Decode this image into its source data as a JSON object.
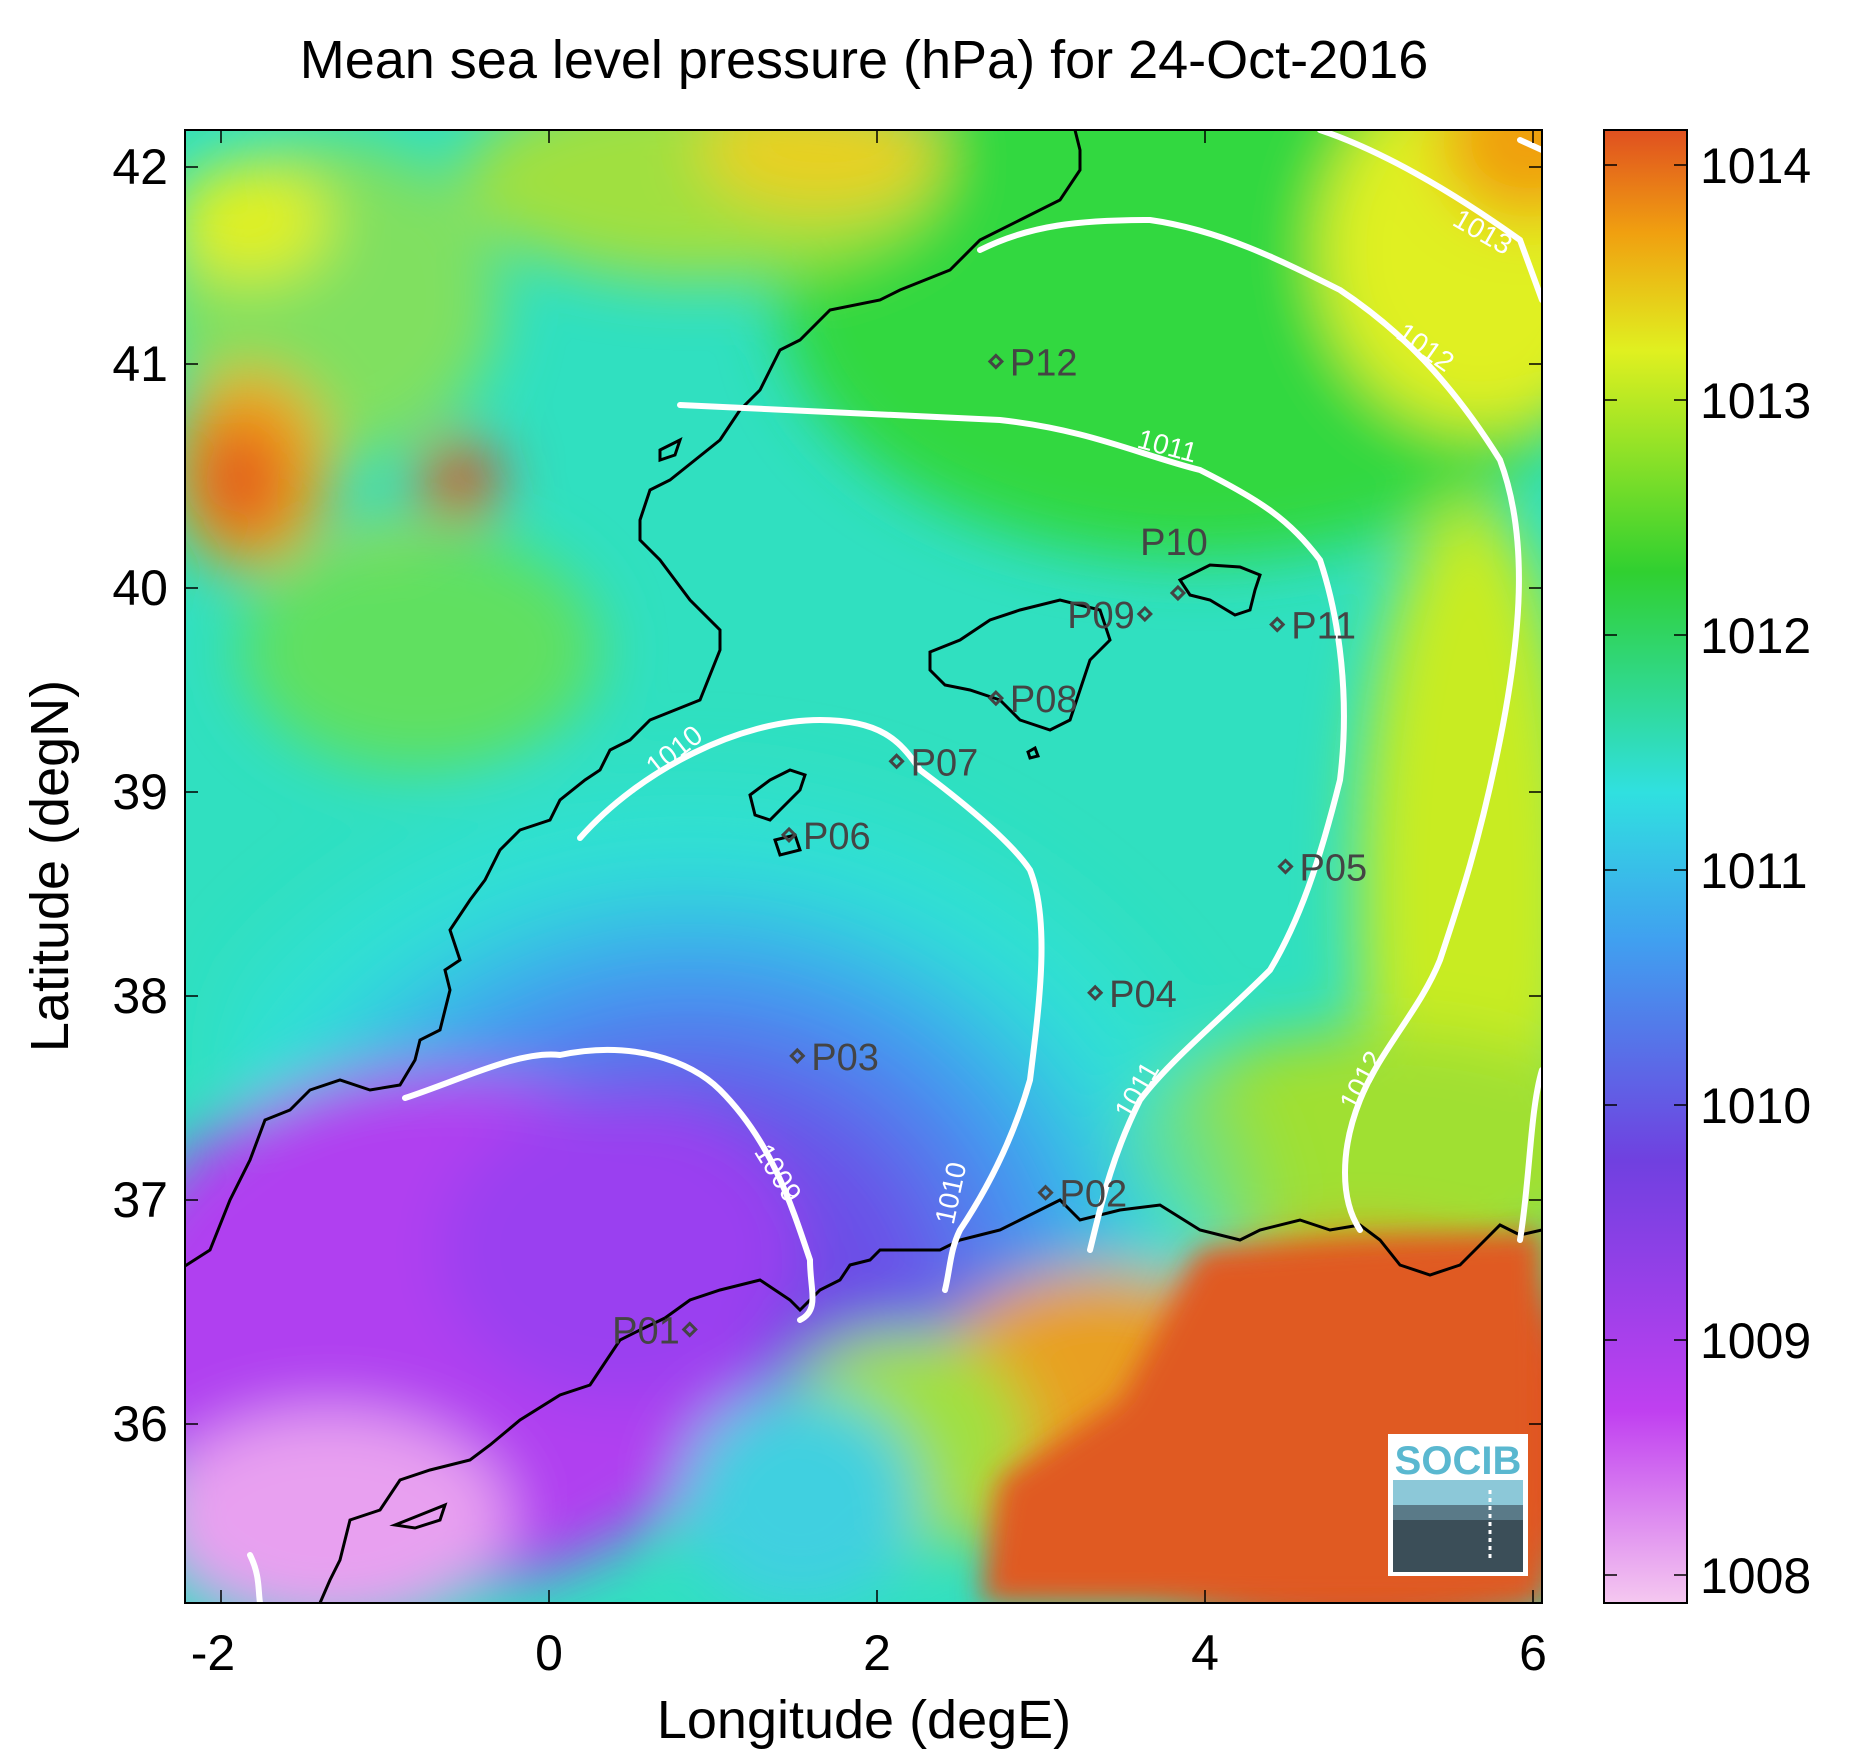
{
  "title": "Mean sea level pressure (hPa) for 24-Oct-2016",
  "xlabel": "Longitude (degE)",
  "ylabel": "Latitude (degN)",
  "xticks": [
    "-2",
    "0",
    "2",
    "4",
    "6"
  ],
  "yticks": [
    "42",
    "41",
    "40",
    "39",
    "38",
    "37",
    "36"
  ],
  "colorbar": {
    "ticks": [
      "1014",
      "1013",
      "1012",
      "1011",
      "1010",
      "1009",
      "1008"
    ],
    "stops": [
      "#f5c8f0",
      "#c040f0",
      "#7040e0",
      "#40a0f0",
      "#30e0e0",
      "#30d030",
      "#e0f020",
      "#f0a010",
      "#e05020"
    ]
  },
  "contour_labels": [
    "1009",
    "1010",
    "1010",
    "1011",
    "1011",
    "1012",
    "1012",
    "1013"
  ],
  "stations": [
    {
      "id": "P01",
      "lon": 0.85,
      "lat": 36.5
    },
    {
      "id": "P02",
      "lon": 3.0,
      "lat": 37.15
    },
    {
      "id": "P03",
      "lon": 1.5,
      "lat": 37.8
    },
    {
      "id": "P04",
      "lon": 3.3,
      "lat": 38.1
    },
    {
      "id": "P05",
      "lon": 4.45,
      "lat": 38.7
    },
    {
      "id": "P06",
      "lon": 1.45,
      "lat": 38.85
    },
    {
      "id": "P07",
      "lon": 2.1,
      "lat": 39.2
    },
    {
      "id": "P08",
      "lon": 2.7,
      "lat": 39.5
    },
    {
      "id": "P09",
      "lon": 3.6,
      "lat": 39.9
    },
    {
      "id": "P10",
      "lon": 3.8,
      "lat": 40.0
    },
    {
      "id": "P11",
      "lon": 4.4,
      "lat": 39.85
    },
    {
      "id": "P12",
      "lon": 2.7,
      "lat": 41.1
    }
  ],
  "logo": "SOCIB",
  "chart_data": {
    "type": "heatmap",
    "title": "Mean sea level pressure (hPa) for 24-Oct-2016",
    "xlabel": "Longitude (degE)",
    "ylabel": "Latitude (degN)",
    "xlim": [
      -2.2,
      6.0
    ],
    "ylim": [
      35.2,
      42.2
    ],
    "clim": [
      1007.9,
      1014.2
    ],
    "colorbar_label_values": [
      1008,
      1009,
      1010,
      1011,
      1012,
      1013,
      1014
    ],
    "contour_levels": [
      1009,
      1010,
      1011,
      1012,
      1013
    ]
  }
}
